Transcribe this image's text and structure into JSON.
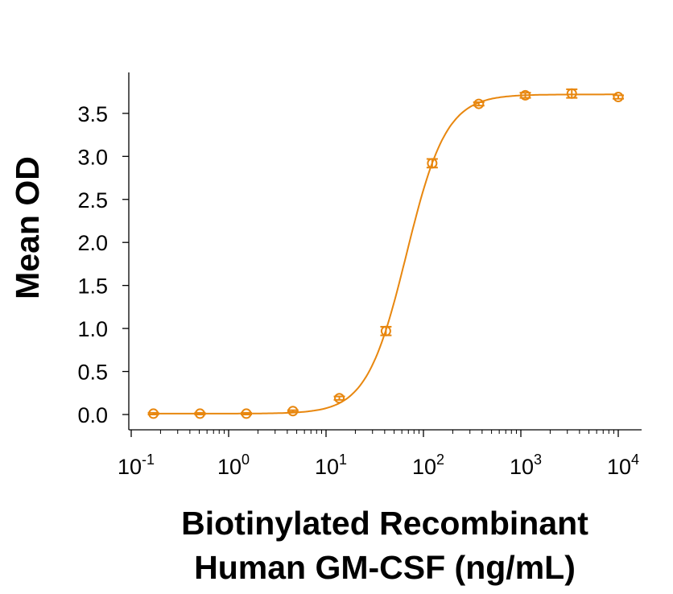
{
  "chart_data": {
    "type": "scatter",
    "xlabel": [
      "Biotinylated Recombinant",
      "Human GM-CSF (ng/mL)"
    ],
    "ylabel": "Mean OD",
    "xscale": "log",
    "xlim": [
      0.1,
      15000
    ],
    "ylim": [
      -0.18,
      3.98
    ],
    "x_ticks": [
      {
        "base": "10",
        "exp": "-1"
      },
      {
        "base": "10",
        "exp": "0"
      },
      {
        "base": "10",
        "exp": "1"
      },
      {
        "base": "10",
        "exp": "2"
      },
      {
        "base": "10",
        "exp": "3"
      },
      {
        "base": "10",
        "exp": "4"
      }
    ],
    "y_ticks": [
      "0.0",
      "0.5",
      "1.0",
      "1.5",
      "2.0",
      "2.5",
      "3.0",
      "3.5"
    ],
    "grid": false,
    "color": "#E8870F",
    "series": [
      {
        "x": [
          0.169,
          0.508,
          1.52,
          4.57,
          13.7,
          41.2,
          123,
          370,
          1111,
          3333,
          10000
        ],
        "y": [
          0.01,
          0.01,
          0.01,
          0.04,
          0.19,
          0.97,
          2.92,
          3.61,
          3.71,
          3.73,
          3.69
        ],
        "err": [
          0.01,
          0.01,
          0.01,
          0.01,
          0.02,
          0.05,
          0.05,
          0.02,
          0.03,
          0.05,
          0.02
        ],
        "fit": "4PL"
      }
    ]
  }
}
